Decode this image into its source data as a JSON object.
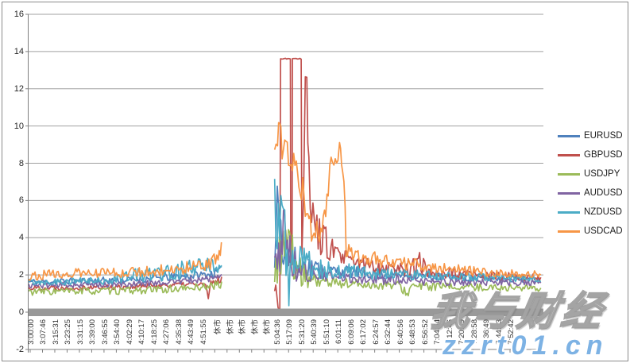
{
  "watermark": {
    "site_name": "我与财经",
    "url": "zzrt01.cn"
  },
  "chart_data": {
    "type": "line",
    "title": "",
    "xlabel": "",
    "ylabel": "",
    "ylim": [
      -2,
      16
    ],
    "yticks": [
      "16",
      "14",
      "12",
      "10",
      "8",
      "6",
      "4",
      "2",
      "0",
      "-2"
    ],
    "grid": true,
    "legend_position": "right",
    "closed_market_label": "休市",
    "x_axis_labels": [
      "3:00:00",
      "3:07:46",
      "3:15:31",
      "3:23:25",
      "3:31:15",
      "3:39:00",
      "3:46:55",
      "3:54:40",
      "4:02:29",
      "4:10:17",
      "4:18:25",
      "4:27:06",
      "4:35:38",
      "4:43:49",
      "4:51:55",
      "休市",
      "休市",
      "休市",
      "休市",
      "休市",
      "5:04:36",
      "5:17:09",
      "5:31:20",
      "5:40:39",
      "5:51:10",
      "6:01:11",
      "6:09:06",
      "6:17:02",
      "6:24:57",
      "6:32:44",
      "6:40:56",
      "6:48:53",
      "6:56:52",
      "7:04:54",
      "7:12:46",
      "7:20:49",
      "7:28:58",
      "7:36:49",
      "7:44:43",
      "7:52:42"
    ],
    "segment_format": "[time_fraction_of_x_axis, spread_value, noise_amplitude]; gap between segments = market closed (休市)",
    "series": [
      {
        "name": "EURUSD",
        "color": "#4F81BD",
        "seed": 11,
        "segments": [
          [
            [
              0,
              1.62,
              0.18
            ],
            [
              0.1,
              1.68,
              0.18
            ],
            [
              0.19,
              1.72,
              0.2
            ],
            [
              0.3,
              1.92,
              0.22
            ],
            [
              0.355,
              2.05,
              0.22
            ],
            [
              0.375,
              2.25,
              0.22
            ]
          ],
          [
            [
              0.478,
              3.2,
              0.9
            ],
            [
              0.483,
              6.6,
              0.9
            ],
            [
              0.49,
              4.8,
              1.9
            ],
            [
              0.5,
              3.0,
              1.1
            ],
            [
              0.52,
              2.6,
              0.85
            ],
            [
              0.545,
              2.4,
              0.65
            ],
            [
              0.565,
              2.3,
              0.5
            ],
            [
              0.6,
              2.2,
              0.35
            ],
            [
              0.65,
              2.1,
              0.3
            ],
            [
              0.72,
              2.0,
              0.25
            ],
            [
              0.8,
              1.9,
              0.22
            ],
            [
              0.9,
              1.8,
              0.18
            ],
            [
              0.995,
              1.75,
              0.15
            ]
          ]
        ]
      },
      {
        "name": "GBPUSD",
        "color": "#C0504D",
        "seed": 22,
        "segments": [
          [
            [
              0,
              1.3,
              0.14
            ],
            [
              0.19,
              1.36,
              0.15
            ],
            [
              0.3,
              1.5,
              0.17
            ],
            [
              0.344,
              1.48,
              0.17
            ],
            [
              0.349,
              0.68,
              0.1
            ],
            [
              0.354,
              1.55,
              0.17
            ],
            [
              0.375,
              1.78,
              0.2
            ]
          ],
          [
            [
              0.478,
              1.3,
              0.5
            ],
            [
              0.4845,
              0.5,
              0.3
            ],
            [
              0.488,
              0.05,
              0.03
            ],
            [
              0.4895,
              13.62,
              0.03
            ],
            [
              0.5085,
              13.62,
              0.03
            ],
            [
              0.5092,
              2.7,
              0.15
            ],
            [
              0.5118,
              2.7,
              0.15
            ],
            [
              0.5125,
              13.62,
              0.03
            ],
            [
              0.5295,
              13.62,
              0.03
            ],
            [
              0.5308,
              3.2,
              0.5
            ],
            [
              0.534,
              6.0,
              1.4
            ],
            [
              0.5375,
              12.7,
              0.1
            ],
            [
              0.5405,
              12.7,
              0.1
            ],
            [
              0.5445,
              7.0,
              1.8
            ],
            [
              0.555,
              4.6,
              1.2
            ],
            [
              0.575,
              3.8,
              0.9
            ],
            [
              0.6,
              3.0,
              0.6
            ],
            [
              0.63,
              2.7,
              0.45
            ],
            [
              0.68,
              2.45,
              0.4
            ],
            [
              0.73,
              2.3,
              0.4
            ],
            [
              0.762,
              2.5,
              0.85
            ],
            [
              0.772,
              2.3,
              0.5
            ],
            [
              0.8,
              2.1,
              0.35
            ],
            [
              0.86,
              2.0,
              0.28
            ],
            [
              0.94,
              1.9,
              0.22
            ],
            [
              0.995,
              1.85,
              0.18
            ]
          ]
        ]
      },
      {
        "name": "USDJPY",
        "color": "#9BBB59",
        "seed": 33,
        "segments": [
          [
            [
              0,
              1.1,
              0.2
            ],
            [
              0.19,
              1.15,
              0.2
            ],
            [
              0.3,
              1.26,
              0.2
            ],
            [
              0.375,
              1.48,
              0.22
            ]
          ],
          [
            [
              0.478,
              2.0,
              0.6
            ],
            [
              0.49,
              3.4,
              1.6
            ],
            [
              0.497,
              4.4,
              2.2
            ],
            [
              0.51,
              3.0,
              1.5
            ],
            [
              0.525,
              2.2,
              0.8
            ],
            [
              0.545,
              1.8,
              0.5
            ],
            [
              0.58,
              1.6,
              0.35
            ],
            [
              0.64,
              1.5,
              0.28
            ],
            [
              0.72,
              1.42,
              0.25
            ],
            [
              0.735,
              1.0,
              0.22
            ],
            [
              0.745,
              1.4,
              0.25
            ],
            [
              0.82,
              1.35,
              0.2
            ],
            [
              0.995,
              1.3,
              0.18
            ]
          ]
        ]
      },
      {
        "name": "AUDUSD",
        "color": "#8064A2",
        "seed": 44,
        "segments": [
          [
            [
              0,
              1.43,
              0.14
            ],
            [
              0.19,
              1.5,
              0.16
            ],
            [
              0.3,
              1.66,
              0.18
            ],
            [
              0.375,
              1.88,
              0.2
            ]
          ],
          [
            [
              0.478,
              2.5,
              0.8
            ],
            [
              0.488,
              3.4,
              1.4
            ],
            [
              0.495,
              4.7,
              1.6
            ],
            [
              0.505,
              3.2,
              1.2
            ],
            [
              0.52,
              2.4,
              0.8
            ],
            [
              0.545,
              2.1,
              0.5
            ],
            [
              0.58,
              1.9,
              0.35
            ],
            [
              0.64,
              1.8,
              0.28
            ],
            [
              0.72,
              1.7,
              0.25
            ],
            [
              0.82,
              1.62,
              0.2
            ],
            [
              0.995,
              1.58,
              0.16
            ]
          ]
        ]
      },
      {
        "name": "NZDUSD",
        "color": "#4BACC6",
        "seed": 55,
        "segments": [
          [
            [
              0,
              1.63,
              0.18
            ],
            [
              0.15,
              1.68,
              0.2
            ],
            [
              0.195,
              1.95,
              0.4
            ],
            [
              0.25,
              2.1,
              0.45
            ],
            [
              0.31,
              2.3,
              0.5
            ],
            [
              0.375,
              2.6,
              0.45
            ]
          ],
          [
            [
              0.478,
              5.0,
              2.6
            ],
            [
              0.49,
              4.4,
              2.4
            ],
            [
              0.5,
              3.5,
              1.8
            ],
            [
              0.5045,
              1.6,
              0.6
            ],
            [
              0.5055,
              0.42,
              0.08
            ],
            [
              0.508,
              2.8,
              1.2
            ],
            [
              0.53,
              2.6,
              1.0
            ],
            [
              0.56,
              2.4,
              0.7
            ],
            [
              0.6,
              2.25,
              0.45
            ],
            [
              0.66,
              2.1,
              0.35
            ],
            [
              0.74,
              2.0,
              0.28
            ],
            [
              0.84,
              1.9,
              0.22
            ],
            [
              0.995,
              1.82,
              0.18
            ]
          ]
        ]
      },
      {
        "name": "USDCAD",
        "color": "#F79646",
        "seed": 66,
        "segments": [
          [
            [
              0,
              1.95,
              0.25
            ],
            [
              0.05,
              2.05,
              0.25
            ],
            [
              0.19,
              2.15,
              0.28
            ],
            [
              0.28,
              2.3,
              0.3
            ],
            [
              0.34,
              2.5,
              0.35
            ],
            [
              0.368,
              2.85,
              0.45
            ],
            [
              0.3745,
              3.6,
              0.25
            ]
          ],
          [
            [
              0.478,
              9.4,
              1.2
            ],
            [
              0.4835,
              9.8,
              0.9
            ],
            [
              0.49,
              9.0,
              1.0
            ],
            [
              0.5,
              8.8,
              0.9
            ],
            [
              0.51,
              8.5,
              1.0
            ],
            [
              0.52,
              8.0,
              1.0
            ],
            [
              0.53,
              6.5,
              1.2
            ],
            [
              0.54,
              5.0,
              0.9
            ],
            [
              0.552,
              4.3,
              0.6
            ],
            [
              0.57,
              4.4,
              0.7
            ],
            [
              0.582,
              6.5,
              0.8
            ],
            [
              0.585,
              8.2,
              0.35
            ],
            [
              0.601,
              8.3,
              0.4
            ],
            [
              0.604,
              9.2,
              0.25
            ],
            [
              0.608,
              8.2,
              0.35
            ],
            [
              0.6125,
              7.0,
              0.8
            ],
            [
              0.617,
              3.4,
              0.5
            ],
            [
              0.64,
              3.0,
              0.45
            ],
            [
              0.68,
              2.8,
              0.4
            ],
            [
              0.73,
              2.6,
              0.35
            ],
            [
              0.8,
              2.4,
              0.3
            ],
            [
              0.88,
              2.15,
              0.25
            ],
            [
              0.995,
              2.0,
              0.2
            ]
          ]
        ]
      }
    ]
  },
  "style_colors": {
    "gridline": "#a0a0a0",
    "axis_line": "#808080",
    "zero_axis_band": "#999999",
    "watermark_url_blue": "#7db2e4"
  }
}
